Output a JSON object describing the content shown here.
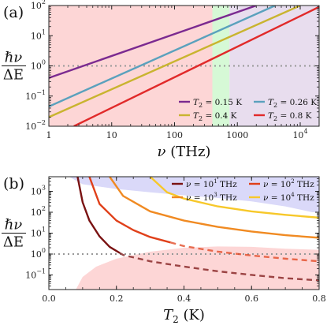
{
  "chart_data": [
    {
      "panel_label": "(a)",
      "type": "line",
      "scale": {
        "x": "log",
        "y": "log"
      },
      "xlim": [
        1,
        20000
      ],
      "ylim": [
        0.01,
        100
      ],
      "xlabel": {
        "symbol": "ν",
        "unit": "(THz)"
      },
      "ylabel": {
        "numerator": "ℏν",
        "denominator": "ΔE"
      },
      "x_ticks": [
        {
          "value": 1,
          "label": "1"
        },
        {
          "value": 10,
          "label": "10"
        },
        {
          "value": 100,
          "label": "100"
        },
        {
          "value": 1000,
          "label": "1000"
        },
        {
          "value": 10000,
          "label": "10",
          "exp": "4"
        }
      ],
      "y_ticks": [
        {
          "value": 0.01,
          "mant": "10",
          "exp": "−2"
        },
        {
          "value": 0.1,
          "mant": "10",
          "exp": "−1"
        },
        {
          "value": 1,
          "mant": "10",
          "exp": "0"
        },
        {
          "value": 10,
          "mant": "10",
          "exp": "1"
        },
        {
          "value": 100,
          "mant": "10",
          "exp": "2"
        }
      ],
      "regions": [
        {
          "x0": 1,
          "x1": 400,
          "color": "#fdd6d6"
        },
        {
          "x0": 400,
          "x1": 750,
          "color": "#d6f9d6"
        },
        {
          "x0": 750,
          "x1": 20000,
          "color": "#e8ddee"
        }
      ],
      "reference_line": {
        "y": 1,
        "style": "dotted",
        "color": "#999999"
      },
      "series": [
        {
          "label": "= 0.15 K",
          "T2": 0.15,
          "color": "#7b2a90",
          "x": [
            1,
            2000
          ],
          "y": [
            0.4,
            100
          ]
        },
        {
          "label": "= 0.26 K",
          "T2": 0.26,
          "color": "#5aa1bd",
          "x": [
            1,
            4000
          ],
          "y": [
            0.045,
            100
          ]
        },
        {
          "label": "= 0.4 K",
          "T2": 0.4,
          "color": "#c9b42f",
          "x": [
            1,
            10000
          ],
          "y": [
            0.02,
            100
          ]
        },
        {
          "label": "= 0.8 K",
          "T2": 0.8,
          "color": "#e12a2a",
          "x": [
            2.5,
            20000
          ],
          "y": [
            0.01,
            90
          ]
        }
      ],
      "legend": {
        "placement": "bottom-right",
        "prefix": "T",
        "sub": "2"
      }
    },
    {
      "panel_label": "(b)",
      "type": "line",
      "scale": {
        "x": "linear",
        "y": "log"
      },
      "xlim": [
        0,
        0.8
      ],
      "ylim": [
        0.02,
        5000
      ],
      "xlabel": {
        "symbol": "T",
        "sub": "2",
        "unit": "(K)"
      },
      "ylabel": {
        "numerator": "ℏν",
        "denominator": "ΔE"
      },
      "x_ticks": [
        {
          "value": 0,
          "label": "0.0"
        },
        {
          "value": 0.2,
          "label": "0.2"
        },
        {
          "value": 0.4,
          "label": "0.4"
        },
        {
          "value": 0.6,
          "label": "0.6"
        },
        {
          "value": 0.8,
          "label": "0.8"
        }
      ],
      "y_ticks": [
        {
          "value": 0.1,
          "mant": "10",
          "exp": "−1"
        },
        {
          "value": 1,
          "mant": "10",
          "exp": "0"
        },
        {
          "value": 10,
          "mant": "10",
          "exp": "1"
        },
        {
          "value": 100,
          "mant": "10",
          "exp": "2"
        },
        {
          "value": 1000,
          "mant": "10",
          "exp": "3"
        }
      ],
      "shaded_regions": [
        {
          "side": "above",
          "color": "#dad9f9",
          "x": [
            0.06,
            0.1,
            0.2,
            0.3,
            0.4,
            0.5,
            0.6,
            0.7,
            0.78,
            0.8
          ],
          "y": [
            5000,
            2200,
            1300,
            900,
            650,
            480,
            330,
            190,
            100,
            100
          ]
        },
        {
          "side": "below",
          "color": "#fdd6d6",
          "x": [
            0.08,
            0.1,
            0.14,
            0.2,
            0.3,
            0.4,
            0.5,
            0.6,
            0.7,
            0.8
          ],
          "y": [
            0.02,
            0.08,
            0.25,
            0.6,
            1.3,
            2.0,
            2.3,
            2.2,
            1.8,
            1.6
          ]
        }
      ],
      "reference_line": {
        "y": 1,
        "style": "dotted",
        "color": "#999999"
      },
      "series": [
        {
          "label": "= 10",
          "exp": "1",
          "color": "#7a1212",
          "x": [
            0.085,
            0.1,
            0.12,
            0.15,
            0.18,
            0.22,
            0.3,
            0.4,
            0.5,
            0.6,
            0.7,
            0.8
          ],
          "y": [
            5000,
            300,
            40,
            7,
            2.2,
            0.9,
            0.45,
            0.25,
            0.15,
            0.1,
            0.07,
            0.055
          ],
          "dashed_from": 0.21
        },
        {
          "label": "= 10",
          "exp": "2",
          "color": "#e0401a",
          "x": [
            0.12,
            0.15,
            0.2,
            0.25,
            0.3,
            0.4,
            0.5,
            0.6,
            0.7,
            0.8
          ],
          "y": [
            5000,
            250,
            40,
            14,
            6.5,
            2.4,
            1.3,
            0.85,
            0.6,
            0.45
          ],
          "dashed_from": 0.36
        },
        {
          "label": "= 10",
          "exp": "3",
          "color": "#f08a22",
          "x": [
            0.18,
            0.22,
            0.3,
            0.4,
            0.5,
            0.6,
            0.7,
            0.8
          ],
          "y": [
            5000,
            600,
            110,
            40,
            20,
            12,
            8,
            6
          ]
        },
        {
          "label": "= 10",
          "exp": "4",
          "color": "#f7c82a",
          "x": [
            0.3,
            0.35,
            0.4,
            0.5,
            0.6,
            0.7,
            0.8
          ],
          "y": [
            5000,
            900,
            450,
            190,
            110,
            75,
            55
          ]
        }
      ],
      "legend": {
        "placement": "top-right",
        "prefix": "ν",
        "unit": "THz"
      }
    }
  ]
}
